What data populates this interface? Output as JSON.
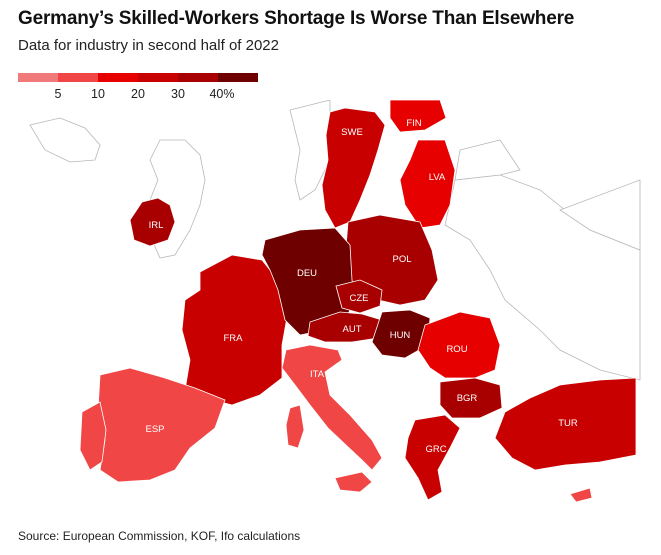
{
  "header": {
    "title": "Germany’s Skilled-Workers Shortage Is Worse Than Elsewhere",
    "subtitle": "Data for industry in second half of 2022"
  },
  "legend": {
    "ticks": [
      "5",
      "10",
      "20",
      "30",
      "40%"
    ],
    "colors": [
      "#f07a7a",
      "#f04646",
      "#e60000",
      "#c80000",
      "#a80000",
      "#6e0000"
    ]
  },
  "map": {
    "land_color": "#ffffff",
    "border_color": "#b8b8b8",
    "countries": [
      {
        "code": "SWE",
        "label": "SWE",
        "class": 3
      },
      {
        "code": "FIN",
        "label": "FIN",
        "class": 2
      },
      {
        "code": "LVA",
        "label": "LVA",
        "class": 2
      },
      {
        "code": "IRL",
        "label": "IRL",
        "class": 4
      },
      {
        "code": "DEU",
        "label": "DEU",
        "class": 5
      },
      {
        "code": "POL",
        "label": "POL",
        "class": 4
      },
      {
        "code": "CZE",
        "label": "CZE",
        "class": 4
      },
      {
        "code": "AUT",
        "label": "AUT",
        "class": 4
      },
      {
        "code": "HUN",
        "label": "HUN",
        "class": 5
      },
      {
        "code": "FRA",
        "label": "FRA",
        "class": 3
      },
      {
        "code": "ROU",
        "label": "ROU",
        "class": 2
      },
      {
        "code": "ITA",
        "label": "ITA",
        "class": 1
      },
      {
        "code": "BGR",
        "label": "BGR",
        "class": 4
      },
      {
        "code": "ESP",
        "label": "ESP",
        "class": 1
      },
      {
        "code": "GRC",
        "label": "GRC",
        "class": 3
      },
      {
        "code": "TUR",
        "label": "TUR",
        "class": 3
      }
    ]
  },
  "footer": {
    "source": "Source: European Commission, KOF, Ifo calculations"
  }
}
